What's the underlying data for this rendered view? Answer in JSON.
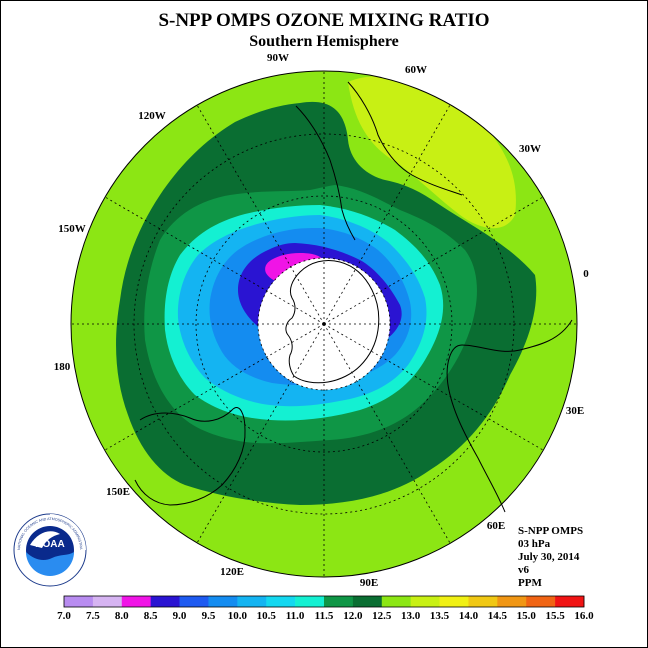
{
  "title": "S-NPP OMPS OZONE MIXING RATIO",
  "subtitle": "Southern Hemisphere",
  "longitude_labels": [
    "90W",
    "60W",
    "30W",
    "0",
    "30E",
    "60E",
    "90E",
    "120E",
    "150E",
    "180",
    "150W",
    "120W"
  ],
  "info": {
    "instrument": "S-NPP OMPS",
    "level": "03 hPa",
    "date": "July 30, 2014",
    "version": "v6",
    "units": "PPM"
  },
  "logo": {
    "text": "NOAA",
    "ring_text": "NATIONAL OCEANIC AND ATMOSPHERIC ADMINISTRATION · U.S. DEPARTMENT OF COMMERCE"
  },
  "colorbar": {
    "ticks": [
      "7.0",
      "7.5",
      "8.0",
      "8.5",
      "9.0",
      "9.5",
      "10.0",
      "10.5",
      "11.0",
      "11.5",
      "12.0",
      "12.5",
      "13.0",
      "13.5",
      "14.0",
      "14.5",
      "15.0",
      "15.5",
      "16.0"
    ],
    "colors": [
      "#b88cf0",
      "#d6b4f2",
      "#f014e6",
      "#2a14d2",
      "#1e5af0",
      "#148cf0",
      "#14b4f2",
      "#14d8f0",
      "#14f0d2",
      "#0f9646",
      "#0a6e32",
      "#8ce614",
      "#c8f014",
      "#f0f014",
      "#f0c814",
      "#f09614",
      "#f06414",
      "#f01414",
      "#8c5a3c"
    ]
  },
  "map_data": {
    "projection": "south-polar-stereographic",
    "levels_ppm": [
      11.0,
      11.5,
      12.0,
      12.5,
      13.0
    ]
  }
}
